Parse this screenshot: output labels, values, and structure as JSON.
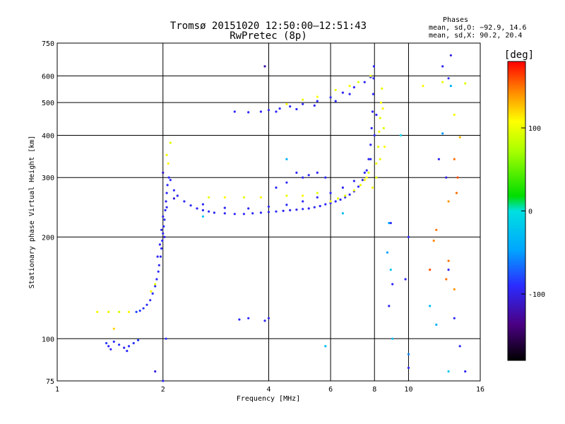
{
  "chart_data": {
    "type": "scatter",
    "title": "Tromsø 20151020 12:50:00–12:51:43",
    "subtitle": "RwPretec (8p)",
    "legend_title": "Phases",
    "legend_stats": [
      "mean, sd,O: −92.9, 14.6",
      "mean, sd,X:  90.2, 20.4"
    ],
    "xlabel": "Frequency [MHz]",
    "ylabel": "Stationary phase Virtual Height [km]",
    "x_scale": "log",
    "y_scale": "log",
    "xlim": [
      1,
      16
    ],
    "ylim": [
      75,
      750
    ],
    "x_ticks": [
      1,
      2,
      4,
      6,
      8,
      10,
      16
    ],
    "y_ticks": [
      75,
      100,
      200,
      300,
      400,
      500,
      600,
      750
    ],
    "grid": "on",
    "colorbar": {
      "label": "[deg]",
      "range": [
        -180,
        180
      ],
      "ticks": [
        100,
        0,
        -100
      ]
    },
    "series": [
      {
        "points": [
          [
            1.38,
            97,
            -85
          ],
          [
            1.4,
            95,
            -92
          ],
          [
            1.45,
            98,
            -90
          ],
          [
            1.5,
            96,
            -88
          ],
          [
            1.55,
            94,
            -93
          ],
          [
            1.6,
            95,
            -90
          ],
          [
            1.65,
            97,
            -88
          ],
          [
            1.7,
            99,
            -85
          ],
          [
            1.42,
            93,
            -95
          ],
          [
            1.58,
            92,
            -91
          ],
          [
            1.68,
            120,
            -80
          ],
          [
            1.72,
            121,
            -85
          ],
          [
            1.76,
            123,
            -88
          ],
          [
            1.8,
            126,
            -90
          ],
          [
            1.84,
            130,
            -92
          ],
          [
            1.87,
            136,
            -88
          ],
          [
            1.9,
            143,
            -90
          ],
          [
            1.92,
            150,
            -93
          ],
          [
            1.94,
            158,
            -92
          ],
          [
            1.95,
            165,
            -95
          ],
          [
            1.97,
            175,
            -93
          ],
          [
            1.98,
            185,
            -90
          ],
          [
            1.99,
            195,
            -92
          ],
          [
            2.0,
            205,
            -95
          ],
          [
            2.01,
            215,
            -93
          ],
          [
            2.02,
            225,
            -90
          ],
          [
            2.03,
            240,
            -92
          ],
          [
            2.04,
            255,
            -95
          ],
          [
            2.05,
            270,
            -93
          ],
          [
            2.06,
            285,
            -91
          ],
          [
            2.08,
            300,
            -90
          ],
          [
            2.1,
            295,
            -92
          ],
          [
            1.96,
            190,
            -94
          ],
          [
            1.98,
            210,
            -91
          ],
          [
            2.0,
            230,
            -93
          ],
          [
            1.93,
            175,
            -92
          ],
          [
            2.02,
            200,
            -96
          ],
          [
            2.05,
            245,
            -94
          ],
          [
            2.15,
            275,
            -92
          ],
          [
            2.2,
            265,
            -95
          ],
          [
            2.3,
            255,
            -93
          ],
          [
            2.4,
            248,
            -92
          ],
          [
            2.5,
            243,
            -95
          ],
          [
            2.6,
            240,
            -93
          ],
          [
            2.7,
            238,
            -92
          ],
          [
            2.8,
            236,
            -94
          ],
          [
            3.0,
            235,
            -95
          ],
          [
            3.2,
            234,
            -93
          ],
          [
            3.4,
            234,
            -92
          ],
          [
            3.6,
            235,
            -94
          ],
          [
            3.8,
            236,
            -93
          ],
          [
            4.0,
            237,
            -95
          ],
          [
            4.2,
            238,
            -92
          ],
          [
            4.4,
            239,
            -94
          ],
          [
            4.6,
            240,
            -93
          ],
          [
            4.8,
            241,
            -95
          ],
          [
            5.0,
            242,
            -92
          ],
          [
            5.2,
            243,
            -94
          ],
          [
            5.4,
            245,
            -93
          ],
          [
            5.6,
            247,
            -95
          ],
          [
            5.8,
            250,
            -92
          ],
          [
            6.0,
            252,
            -94
          ],
          [
            6.2,
            255,
            -93
          ],
          [
            6.4,
            258,
            -92
          ],
          [
            6.6,
            262,
            -94
          ],
          [
            6.8,
            267,
            -93
          ],
          [
            7.0,
            273,
            -95
          ],
          [
            7.2,
            282,
            -92
          ],
          [
            7.4,
            295,
            -94
          ],
          [
            7.6,
            315,
            -93
          ],
          [
            7.7,
            340,
            -92
          ],
          [
            7.8,
            375,
            -94
          ],
          [
            7.85,
            420,
            -93
          ],
          [
            7.9,
            470,
            -95
          ],
          [
            7.93,
            530,
            -92
          ],
          [
            7.95,
            590,
            -94
          ],
          [
            7.97,
            640,
            -93
          ],
          [
            2.6,
            250,
            -92
          ],
          [
            3.0,
            244,
            -94
          ],
          [
            3.5,
            243,
            -95
          ],
          [
            4.0,
            246,
            -93
          ],
          [
            4.5,
            249,
            -92
          ],
          [
            5.0,
            255,
            -94
          ],
          [
            5.5,
            262,
            -93
          ],
          [
            6.0,
            270,
            -92
          ],
          [
            6.5,
            280,
            -94
          ],
          [
            7.0,
            293,
            -93
          ],
          [
            7.5,
            310,
            -95
          ],
          [
            7.8,
            340,
            -92
          ],
          [
            8.0,
            400,
            -94
          ],
          [
            8.1,
            460,
            -93
          ],
          [
            3.2,
            470,
            -93
          ],
          [
            3.5,
            468,
            -92
          ],
          [
            3.8,
            470,
            -94
          ],
          [
            4.0,
            475,
            -93
          ],
          [
            4.3,
            480,
            -95
          ],
          [
            4.6,
            487,
            -92
          ],
          [
            5.0,
            495,
            -94
          ],
          [
            5.5,
            505,
            -93
          ],
          [
            6.0,
            518,
            -92
          ],
          [
            6.5,
            535,
            -94
          ],
          [
            7.0,
            555,
            -93
          ],
          [
            7.5,
            575,
            -95
          ],
          [
            7.8,
            595,
            -92
          ],
          [
            4.2,
            470,
            -94
          ],
          [
            4.8,
            478,
            -93
          ],
          [
            5.4,
            490,
            -95
          ],
          [
            6.2,
            505,
            -92
          ],
          [
            6.8,
            530,
            -94
          ],
          [
            4.8,
            310,
            -93
          ],
          [
            5.0,
            300,
            -94
          ],
          [
            5.2,
            305,
            -92
          ],
          [
            5.5,
            310,
            -95
          ],
          [
            5.8,
            300,
            -93
          ],
          [
            4.5,
            290,
            -94
          ],
          [
            4.2,
            280,
            -92
          ],
          [
            3.5,
            115,
            -93
          ],
          [
            3.9,
            113,
            -94
          ],
          [
            4.0,
            115,
            -95
          ],
          [
            3.3,
            114,
            -92
          ]
        ]
      },
      {
        "points": [
          [
            1.4,
            120,
            100
          ],
          [
            1.5,
            120,
            95
          ],
          [
            1.6,
            120,
            110
          ],
          [
            1.3,
            120,
            105
          ],
          [
            1.45,
            107,
            120
          ],
          [
            2.7,
            262,
            100
          ],
          [
            3.0,
            262,
            110
          ],
          [
            3.4,
            262,
            95
          ],
          [
            3.8,
            262,
            105
          ],
          [
            4.5,
            265,
            100
          ],
          [
            5.0,
            265,
            110
          ],
          [
            5.5,
            270,
            95
          ],
          [
            6.0,
            255,
            110
          ],
          [
            6.3,
            260,
            100
          ],
          [
            6.6,
            265,
            95
          ],
          [
            7.0,
            275,
            105
          ],
          [
            7.3,
            285,
            100
          ],
          [
            7.5,
            295,
            110
          ],
          [
            7.7,
            310,
            95
          ],
          [
            8.1,
            330,
            105
          ],
          [
            8.2,
            370,
            100
          ],
          [
            8.25,
            410,
            110
          ],
          [
            8.3,
            450,
            95
          ],
          [
            8.35,
            500,
            105
          ],
          [
            8.4,
            550,
            100
          ],
          [
            8.45,
            480,
            110
          ],
          [
            8.5,
            420,
            95
          ],
          [
            8.55,
            370,
            105
          ],
          [
            8.3,
            340,
            100
          ],
          [
            8.1,
            300,
            95
          ],
          [
            7.9,
            280,
            105
          ],
          [
            7.6,
            300,
            110
          ],
          [
            6.2,
            545,
            100
          ],
          [
            6.8,
            560,
            110
          ],
          [
            7.2,
            575,
            95
          ],
          [
            7.8,
            600,
            100
          ],
          [
            5.5,
            520,
            105
          ],
          [
            4.5,
            495,
            110
          ],
          [
            5.0,
            510,
            100
          ],
          [
            2.05,
            350,
            100
          ],
          [
            2.07,
            330,
            110
          ],
          [
            2.1,
            380,
            95
          ],
          [
            1.9,
            145,
            100
          ],
          [
            1.85,
            138,
            105
          ],
          [
            11.0,
            560,
            110
          ],
          [
            12.5,
            575,
            100
          ],
          [
            13.5,
            460,
            105
          ],
          [
            14.5,
            570,
            95
          ],
          [
            12.0,
            210,
            150
          ],
          [
            13.0,
            255,
            140
          ],
          [
            13.5,
            340,
            150
          ],
          [
            14.0,
            395,
            130
          ],
          [
            13.8,
            300,
            160
          ],
          [
            13.0,
            170,
            150
          ],
          [
            13.5,
            140,
            140
          ],
          [
            12.8,
            150,
            150
          ],
          [
            11.5,
            160,
            160
          ],
          [
            11.8,
            195,
            145
          ],
          [
            13.7,
            270,
            150
          ]
        ]
      },
      {
        "points": [
          [
            8.8,
            220,
            -40
          ],
          [
            8.9,
            160,
            -20
          ],
          [
            9.0,
            100,
            -30
          ],
          [
            10.0,
            90,
            -60
          ],
          [
            11.5,
            125,
            -30
          ],
          [
            12.0,
            110,
            -40
          ],
          [
            13.0,
            80,
            -20
          ],
          [
            12.5,
            405,
            -50
          ],
          [
            13.2,
            560,
            -40
          ],
          [
            5.8,
            95,
            -30
          ],
          [
            9.5,
            400,
            -10
          ],
          [
            8.7,
            180,
            -50
          ],
          [
            4.5,
            340,
            -40
          ],
          [
            6.5,
            235,
            -30
          ],
          [
            2.6,
            230,
            -20
          ]
        ]
      },
      {
        "points": [
          [
            12.5,
            640,
            -95
          ],
          [
            13.2,
            690,
            -100
          ],
          [
            13.0,
            590,
            -92
          ],
          [
            12.2,
            340,
            -95
          ],
          [
            12.8,
            300,
            -100
          ],
          [
            10.0,
            200,
            -93
          ],
          [
            9.8,
            150,
            -95
          ],
          [
            8.9,
            220,
            -92
          ],
          [
            9.0,
            145,
            -94
          ],
          [
            8.8,
            125,
            -96
          ],
          [
            10.0,
            82,
            -93
          ],
          [
            13.0,
            160,
            -95
          ],
          [
            13.5,
            115,
            -94
          ],
          [
            14.0,
            95,
            -92
          ],
          [
            14.5,
            80,
            -93
          ],
          [
            3.9,
            640,
            -120
          ],
          [
            2.0,
            310,
            -110
          ],
          [
            2.15,
            260,
            -105
          ],
          [
            1.9,
            80,
            -100
          ],
          [
            2.0,
            75,
            -95
          ],
          [
            2.04,
            100,
            -92
          ]
        ]
      }
    ]
  }
}
